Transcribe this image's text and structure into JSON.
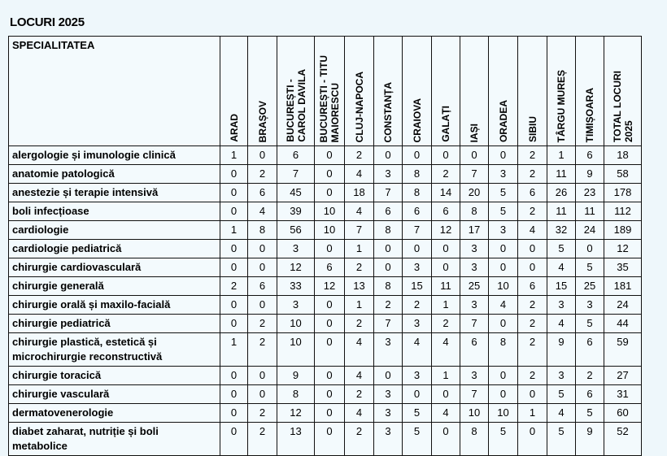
{
  "title": "LOCURI 2025",
  "columns": [
    "SPECIALITATEA",
    "ARAD",
    "BRAȘOV",
    "BUCUREȘTI -\nCAROL  DAVILA",
    "BUCUREȘTI - TITU\nMAIORESCU",
    "CLUJ-NAPOCA",
    "CONSTANȚA",
    "CRAIOVA",
    "GALAȚI",
    "IAȘI",
    "ORADEA",
    "SIBIU",
    "TÂRGU MUREȘ",
    "TIMIȘOARA",
    "TOTAL LOCURI\n2025"
  ],
  "rows": [
    {
      "name": "alergologie și imunologie clinică",
      "values": [
        1,
        0,
        6,
        0,
        2,
        0,
        0,
        0,
        0,
        0,
        2,
        1,
        6,
        18
      ]
    },
    {
      "name": "anatomie patologică",
      "values": [
        0,
        2,
        7,
        0,
        4,
        3,
        8,
        2,
        7,
        3,
        2,
        11,
        9,
        58
      ]
    },
    {
      "name": "anestezie și terapie intensivă",
      "values": [
        0,
        6,
        45,
        0,
        18,
        7,
        8,
        14,
        20,
        5,
        6,
        26,
        23,
        178
      ]
    },
    {
      "name": "boli infecțioase",
      "values": [
        0,
        4,
        39,
        10,
        4,
        6,
        6,
        6,
        8,
        5,
        2,
        11,
        11,
        112
      ]
    },
    {
      "name": "cardiologie",
      "values": [
        1,
        8,
        56,
        10,
        7,
        8,
        7,
        12,
        17,
        3,
        4,
        32,
        24,
        189
      ]
    },
    {
      "name": "cardiologie pediatrică",
      "values": [
        0,
        0,
        3,
        0,
        1,
        0,
        0,
        0,
        3,
        0,
        0,
        5,
        0,
        12
      ]
    },
    {
      "name": "chirurgie cardiovasculară",
      "values": [
        0,
        0,
        12,
        6,
        2,
        0,
        3,
        0,
        3,
        0,
        0,
        4,
        5,
        35
      ]
    },
    {
      "name": "chirurgie generală",
      "values": [
        2,
        6,
        33,
        12,
        13,
        8,
        15,
        11,
        25,
        10,
        6,
        15,
        25,
        181
      ]
    },
    {
      "name": "chirurgie orală și maxilo-facială",
      "values": [
        0,
        0,
        3,
        0,
        1,
        2,
        2,
        1,
        3,
        4,
        2,
        3,
        3,
        24
      ]
    },
    {
      "name": "chirurgie pediatrică",
      "values": [
        0,
        2,
        10,
        0,
        2,
        7,
        3,
        2,
        7,
        0,
        2,
        4,
        5,
        44
      ]
    },
    {
      "name": "chirurgie plastică, estetică și microchirurgie reconstructivă",
      "values": [
        1,
        2,
        10,
        0,
        4,
        3,
        4,
        4,
        6,
        8,
        2,
        9,
        6,
        59
      ]
    },
    {
      "name": "chirurgie toracică",
      "values": [
        0,
        0,
        9,
        0,
        4,
        0,
        3,
        1,
        3,
        0,
        2,
        3,
        2,
        27
      ]
    },
    {
      "name": "chirurgie vasculară",
      "values": [
        0,
        0,
        8,
        0,
        2,
        3,
        0,
        0,
        7,
        0,
        0,
        5,
        6,
        31
      ]
    },
    {
      "name": "dermatovenerologie",
      "values": [
        0,
        2,
        12,
        0,
        4,
        3,
        5,
        4,
        10,
        10,
        1,
        4,
        5,
        60
      ]
    },
    {
      "name": "diabet zaharat, nutriție și boli metabolice",
      "values": [
        0,
        2,
        13,
        0,
        2,
        3,
        5,
        0,
        8,
        5,
        0,
        5,
        9,
        52
      ]
    }
  ]
}
